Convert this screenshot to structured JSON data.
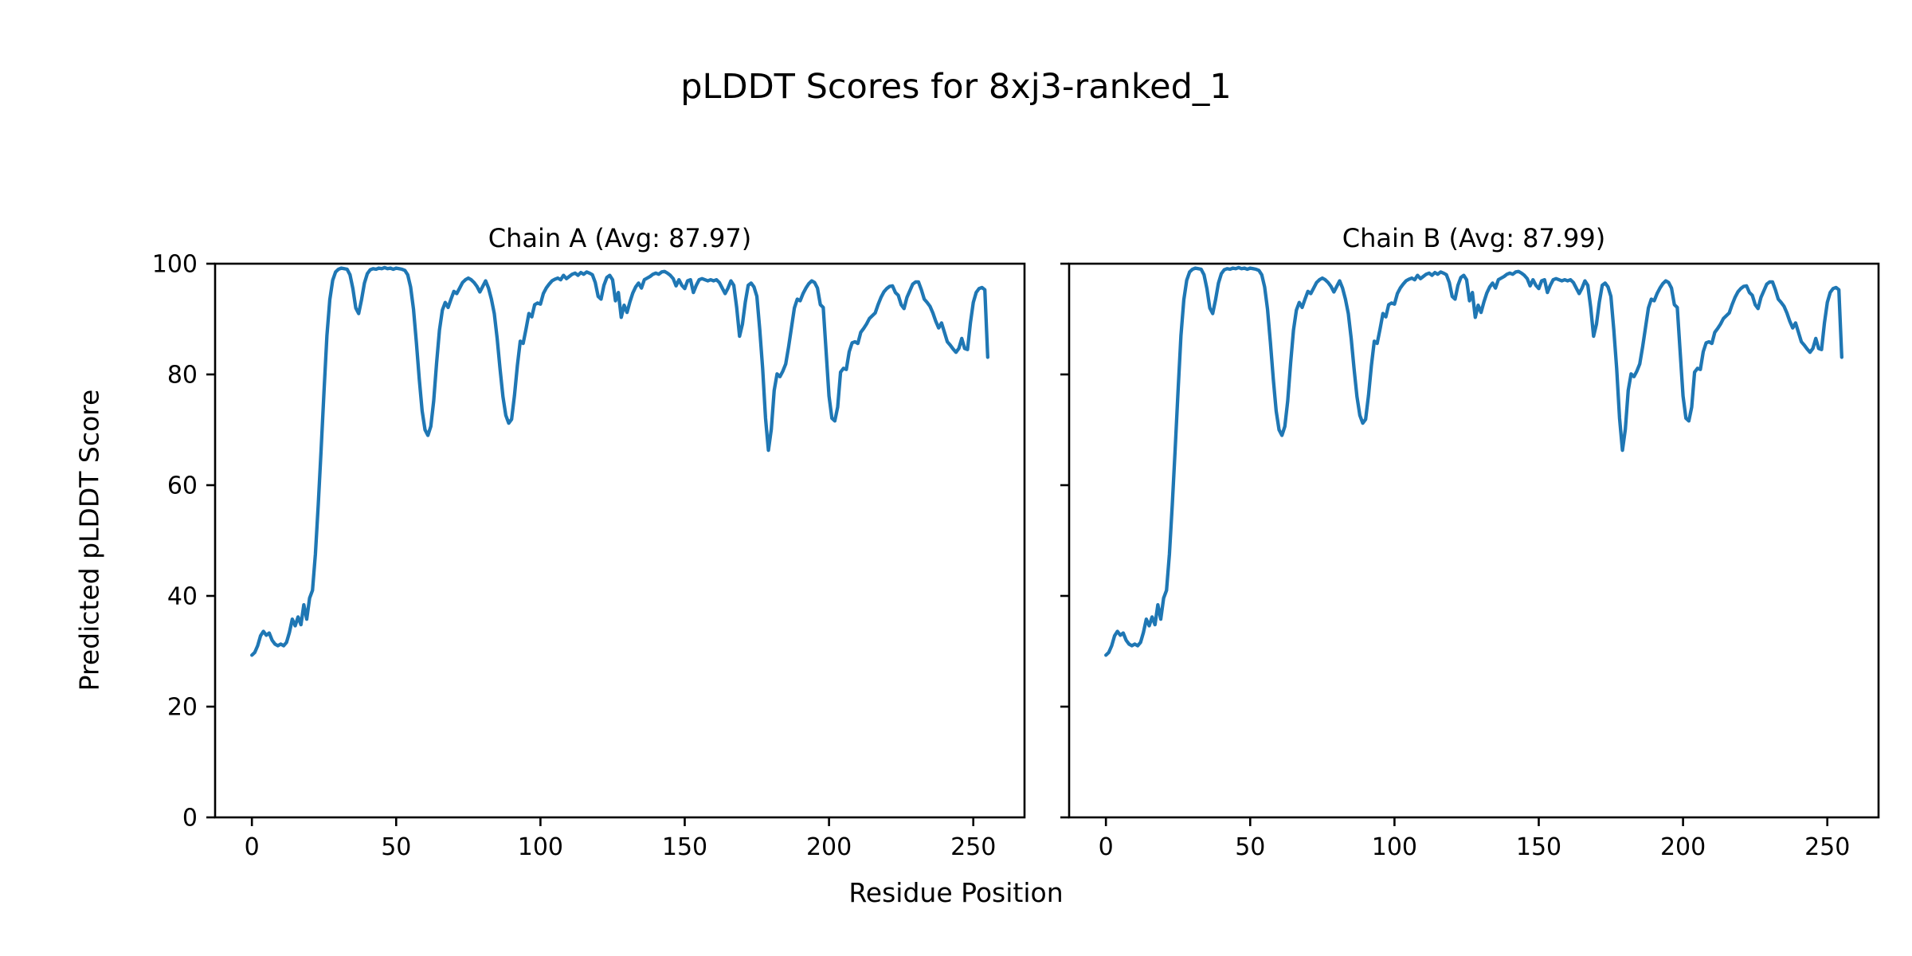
{
  "figure": {
    "suptitle": "pLDDT Scores for 8xj3-ranked_1",
    "xlabel": "Residue Position",
    "ylabel": "Predicted pLDDT Score"
  },
  "chart_data": {
    "type": "line",
    "line_color": "#1f77b4",
    "text_color": "#000000",
    "grid": false,
    "legend": "none",
    "xlim": [
      -12.75,
      267.75
    ],
    "ylim": [
      0,
      100
    ],
    "x_ticks": [
      0,
      50,
      100,
      150,
      200,
      250
    ],
    "y_ticks": [
      0,
      20,
      40,
      60,
      80,
      100
    ],
    "x_start": 0,
    "x_step": 1,
    "subplots": [
      {
        "title": "Chain A (Avg: 87.97)",
        "series_name": "Chain A",
        "avg": 87.97,
        "show_y_tick_labels": true,
        "values": [
          29.3,
          29.8,
          31.0,
          32.8,
          33.6,
          32.9,
          33.3,
          32.0,
          31.3,
          31.0,
          31.3,
          31.0,
          31.6,
          33.4,
          35.8,
          34.6,
          36.2,
          34.8,
          38.4,
          35.8,
          39.6,
          41.0,
          47.5,
          56.5,
          66.5,
          77.0,
          87.0,
          93.5,
          97.0,
          98.5,
          99.0,
          99.2,
          99.1,
          99.0,
          98.0,
          95.5,
          92.0,
          91.0,
          93.5,
          96.5,
          98.2,
          98.9,
          99.1,
          99.0,
          99.2,
          99.1,
          99.3,
          99.1,
          99.2,
          99.0,
          99.2,
          99.1,
          99.0,
          98.8,
          98.0,
          95.8,
          91.8,
          85.8,
          79.2,
          73.4,
          70.0,
          69.0,
          70.6,
          75.2,
          82.0,
          88.0,
          91.6,
          93.0,
          92.1,
          93.6,
          95.0,
          94.6,
          95.6,
          96.6,
          97.1,
          97.4,
          97.1,
          96.6,
          95.9,
          94.9,
          95.9,
          96.9,
          95.6,
          93.6,
          91.0,
          86.5,
          81.0,
          76.0,
          72.6,
          71.2,
          71.9,
          76.2,
          81.6,
          86.0,
          85.6,
          88.2,
          91.0,
          90.4,
          92.6,
          92.9,
          92.7,
          94.6,
          95.6,
          96.3,
          96.9,
          97.2,
          97.4,
          97.1,
          97.9,
          97.3,
          97.7,
          98.1,
          98.3,
          97.9,
          98.4,
          98.1,
          98.5,
          98.3,
          98.0,
          96.6,
          94.1,
          93.6,
          96.1,
          97.5,
          97.9,
          97.1,
          93.3,
          94.8,
          90.3,
          92.5,
          91.2,
          93.1,
          94.7,
          95.8,
          96.5,
          95.6,
          97.1,
          97.4,
          97.7,
          98.1,
          98.3,
          98.1,
          98.5,
          98.6,
          98.3,
          97.9,
          97.3,
          96.0,
          97.1,
          96.1,
          95.5,
          96.9,
          97.1,
          94.8,
          96.1,
          97.1,
          97.3,
          97.1,
          96.9,
          97.1,
          96.9,
          97.1,
          96.6,
          95.6,
          94.6,
          95.6,
          96.9,
          96.1,
          92.1,
          86.9,
          89.1,
          93.1,
          96.1,
          96.5,
          95.8,
          94.1,
          88.1,
          81.1,
          72.1,
          66.3,
          70.1,
          77.1,
          80.1,
          79.6,
          80.6,
          81.9,
          85.0,
          88.5,
          92.0,
          93.6,
          93.3,
          94.6,
          95.6,
          96.4,
          96.9,
          96.6,
          95.6,
          92.6,
          92.1,
          84.1,
          76.1,
          72.1,
          71.6,
          74.1,
          80.4,
          81.1,
          80.9,
          84.1,
          85.7,
          85.9,
          85.6,
          87.6,
          88.3,
          89.1,
          90.1,
          90.6,
          91.1,
          92.6,
          93.9,
          94.9,
          95.5,
          95.9,
          96.0,
          94.8,
          94.3,
          92.6,
          91.9,
          93.9,
          95.1,
          96.3,
          96.7,
          96.7,
          95.3,
          93.6,
          93.0,
          92.3,
          91.1,
          89.6,
          88.4,
          89.3,
          87.6,
          85.9,
          85.3,
          84.6,
          84.0,
          84.7,
          86.5,
          84.7,
          84.5,
          89.3,
          93.0,
          94.8,
          95.5,
          95.7,
          95.3,
          83.1
        ]
      },
      {
        "title": "Chain B (Avg: 87.99)",
        "series_name": "Chain B",
        "avg": 87.99,
        "show_y_tick_labels": false,
        "values": [
          29.3,
          29.8,
          31.0,
          32.8,
          33.6,
          32.9,
          33.3,
          32.0,
          31.3,
          31.0,
          31.3,
          31.0,
          31.6,
          33.4,
          35.8,
          34.6,
          36.2,
          34.8,
          38.4,
          35.8,
          39.6,
          41.0,
          47.5,
          56.5,
          66.5,
          77.0,
          87.0,
          93.5,
          97.0,
          98.5,
          99.0,
          99.2,
          99.1,
          99.0,
          98.0,
          95.5,
          92.0,
          91.0,
          93.5,
          96.5,
          98.2,
          98.9,
          99.1,
          99.0,
          99.2,
          99.1,
          99.3,
          99.1,
          99.2,
          99.0,
          99.2,
          99.1,
          99.0,
          98.8,
          98.0,
          95.8,
          91.8,
          85.8,
          79.2,
          73.4,
          70.0,
          69.0,
          70.6,
          75.2,
          82.0,
          88.0,
          91.6,
          93.0,
          92.1,
          93.6,
          95.0,
          94.6,
          95.6,
          96.6,
          97.1,
          97.4,
          97.1,
          96.6,
          95.9,
          94.9,
          95.9,
          96.9,
          95.6,
          93.6,
          91.0,
          86.5,
          81.0,
          76.0,
          72.6,
          71.2,
          71.9,
          76.2,
          81.6,
          86.0,
          85.6,
          88.2,
          91.0,
          90.4,
          92.6,
          92.9,
          92.7,
          94.6,
          95.6,
          96.3,
          96.9,
          97.2,
          97.4,
          97.1,
          97.9,
          97.3,
          97.7,
          98.1,
          98.3,
          97.9,
          98.4,
          98.1,
          98.5,
          98.3,
          98.0,
          96.6,
          94.1,
          93.6,
          96.1,
          97.5,
          97.9,
          97.1,
          93.3,
          94.8,
          90.3,
          92.5,
          91.2,
          93.1,
          94.7,
          95.8,
          96.5,
          95.6,
          97.1,
          97.4,
          97.7,
          98.1,
          98.3,
          98.1,
          98.5,
          98.6,
          98.3,
          97.9,
          97.3,
          96.0,
          97.1,
          96.1,
          95.5,
          96.9,
          97.1,
          94.8,
          96.1,
          97.1,
          97.3,
          97.1,
          96.9,
          97.1,
          96.9,
          97.1,
          96.6,
          95.6,
          94.6,
          95.6,
          96.9,
          96.1,
          92.1,
          86.9,
          89.1,
          93.1,
          96.1,
          96.5,
          95.8,
          94.1,
          88.1,
          81.1,
          72.1,
          66.3,
          70.1,
          77.1,
          80.1,
          79.6,
          80.6,
          81.9,
          85.0,
          88.5,
          92.0,
          93.6,
          93.3,
          94.6,
          95.6,
          96.4,
          96.9,
          96.6,
          95.6,
          92.6,
          92.1,
          84.1,
          76.1,
          72.1,
          71.6,
          74.1,
          80.4,
          81.1,
          80.9,
          84.1,
          85.7,
          85.9,
          85.6,
          87.6,
          88.3,
          89.1,
          90.1,
          90.6,
          91.1,
          92.6,
          93.9,
          94.9,
          95.5,
          95.9,
          96.0,
          94.8,
          94.3,
          92.6,
          91.9,
          93.9,
          95.1,
          96.3,
          96.7,
          96.7,
          95.3,
          93.6,
          93.0,
          92.3,
          91.1,
          89.6,
          88.4,
          89.3,
          87.6,
          85.9,
          85.3,
          84.6,
          84.0,
          84.7,
          86.5,
          84.7,
          84.5,
          89.3,
          93.0,
          94.8,
          95.5,
          95.7,
          95.3,
          83.1
        ]
      }
    ]
  }
}
